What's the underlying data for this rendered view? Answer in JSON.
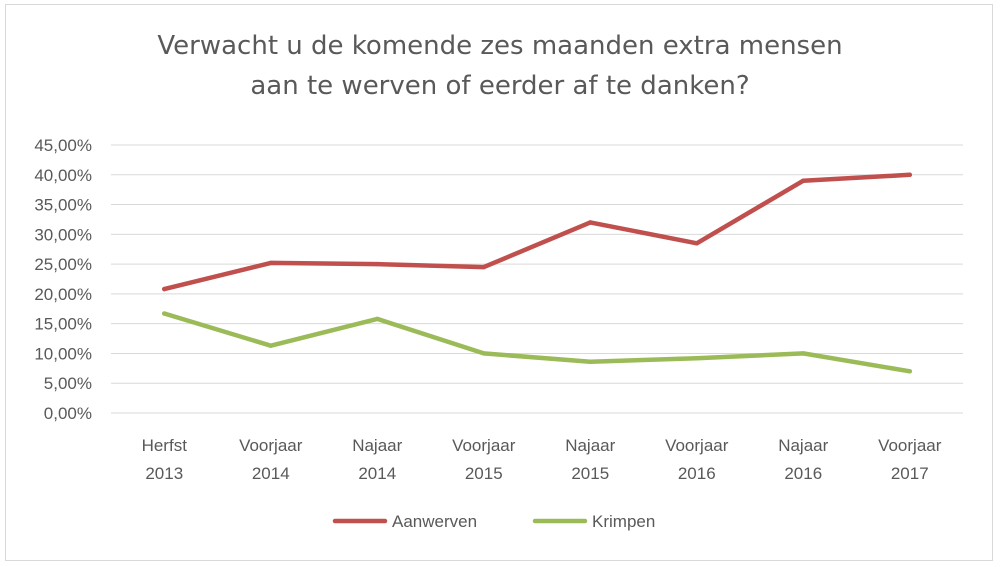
{
  "chart_data": {
    "type": "line",
    "title_lines": [
      "Verwacht u de komende zes maanden extra mensen",
      "aan te werven of eerder af te danken?"
    ],
    "categories": [
      [
        "Herfst",
        "2013"
      ],
      [
        "Voorjaar",
        "2014"
      ],
      [
        "Najaar",
        "2014"
      ],
      [
        "Voorjaar",
        "2015"
      ],
      [
        "Najaar",
        "2015"
      ],
      [
        "Voorjaar",
        "2016"
      ],
      [
        "Najaar",
        "2016"
      ],
      [
        "Voorjaar",
        "2017"
      ]
    ],
    "y_ticks": [
      "0,00%",
      "5,00%",
      "10,00%",
      "15,00%",
      "20,00%",
      "25,00%",
      "30,00%",
      "35,00%",
      "40,00%",
      "45,00%"
    ],
    "ylim": [
      0,
      45
    ],
    "grid": true,
    "legend_position": "bottom",
    "series": [
      {
        "name": "Aanwerven",
        "color": "#c0504d",
        "values": [
          20.8,
          25.2,
          25.0,
          24.5,
          32.0,
          28.5,
          39.0,
          40.0
        ]
      },
      {
        "name": "Krimpen",
        "color": "#9bbb59",
        "values": [
          16.7,
          11.3,
          15.8,
          10.0,
          8.6,
          9.2,
          10.0,
          7.0
        ]
      }
    ]
  }
}
